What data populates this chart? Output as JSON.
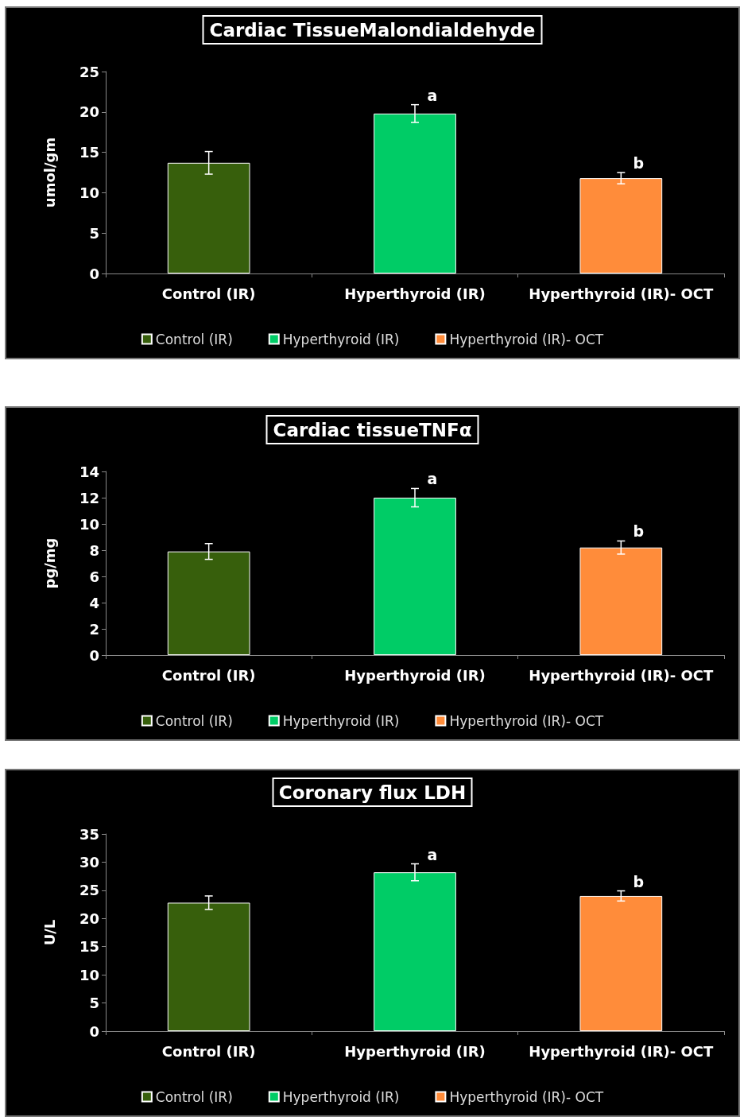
{
  "chart_data": [
    {
      "type": "bar",
      "title": "Cardiac TissueMalondialdehyde",
      "ylabel": "umol/gm",
      "categories": [
        "Control (IR)",
        "Hyperthyroid (IR)",
        "Hyperthyroid (IR)- OCT"
      ],
      "series": [
        {
          "name": "Control (IR)",
          "color": "#375f0c",
          "values": [
            13.7,
            null,
            null
          ],
          "errors": [
            1.4,
            null,
            null
          ]
        },
        {
          "name": "Hyperthyroid (IR)",
          "color": "#00cc66",
          "values": [
            null,
            19.8,
            null
          ],
          "errors": [
            null,
            1.1,
            null
          ]
        },
        {
          "name": "Hyperthyroid (IR)- OCT",
          "color": "#ff8c3a",
          "values": [
            null,
            null,
            11.8
          ],
          "errors": [
            null,
            null,
            0.7
          ]
        }
      ],
      "ylim": [
        0,
        25
      ],
      "yticks": [
        0,
        5,
        10,
        15,
        20,
        25
      ],
      "grid": false,
      "legend": "bottom",
      "annotations": [
        {
          "text": "a",
          "x": "Hyperthyroid (IR)",
          "y": 19.8
        },
        {
          "text": "b",
          "x": "Hyperthyroid (IR)- OCT",
          "y": 11.8
        }
      ]
    },
    {
      "type": "bar",
      "title": "Cardiac tissueTNFα",
      "ylabel": "pg/mg",
      "categories": [
        "Control (IR)",
        "Hyperthyroid (IR)",
        "Hyperthyroid (IR)- OCT"
      ],
      "series": [
        {
          "name": "Control (IR)",
          "color": "#375f0c",
          "values": [
            7.9,
            null,
            null
          ],
          "errors": [
            0.6,
            null,
            null
          ]
        },
        {
          "name": "Hyperthyroid (IR)",
          "color": "#00cc66",
          "values": [
            null,
            12.0,
            null
          ],
          "errors": [
            null,
            0.7,
            null
          ]
        },
        {
          "name": "Hyperthyroid (IR)- OCT",
          "color": "#ff8c3a",
          "values": [
            null,
            null,
            8.2
          ],
          "errors": [
            null,
            null,
            0.5
          ]
        }
      ],
      "ylim": [
        0,
        14
      ],
      "yticks": [
        0,
        2,
        4,
        6,
        8,
        10,
        12,
        14
      ],
      "grid": false,
      "legend": "bottom",
      "annotations": [
        {
          "text": "a",
          "x": "Hyperthyroid (IR)",
          "y": 12.0
        },
        {
          "text": "b",
          "x": "Hyperthyroid (IR)- OCT",
          "y": 8.2
        }
      ]
    },
    {
      "type": "bar",
      "title": "Coronary flux LDH",
      "ylabel": "U/L",
      "categories": [
        "Control (IR)",
        "Hyperthyroid (IR)",
        "Hyperthyroid (IR)- OCT"
      ],
      "series": [
        {
          "name": "Control (IR)",
          "color": "#375f0c",
          "values": [
            22.8,
            null,
            null
          ],
          "errors": [
            1.2,
            null,
            null
          ]
        },
        {
          "name": "Hyperthyroid (IR)",
          "color": "#00cc66",
          "values": [
            null,
            28.2,
            null
          ],
          "errors": [
            null,
            1.5,
            null
          ]
        },
        {
          "name": "Hyperthyroid (IR)- OCT",
          "color": "#ff8c3a",
          "values": [
            null,
            null,
            24.0
          ],
          "errors": [
            null,
            null,
            0.9
          ]
        }
      ],
      "ylim": [
        0,
        35
      ],
      "yticks": [
        0,
        5,
        10,
        15,
        20,
        25,
        30,
        35
      ],
      "grid": false,
      "legend": "bottom",
      "annotations": [
        {
          "text": "a",
          "x": "Hyperthyroid (IR)",
          "y": 28.2
        },
        {
          "text": "b",
          "x": "Hyperthyroid (IR)- OCT",
          "y": 24.0
        }
      ]
    }
  ]
}
